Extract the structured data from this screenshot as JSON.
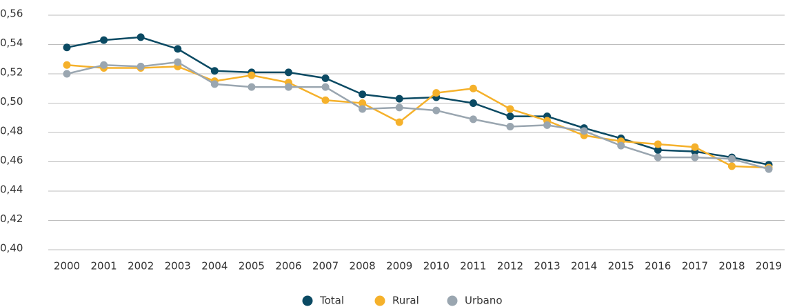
{
  "chart_data": {
    "type": "line",
    "categories": [
      "2000",
      "2001",
      "2002",
      "2003",
      "2004",
      "2005",
      "2006",
      "2007",
      "2008",
      "2009",
      "2010",
      "2011",
      "2012",
      "2013",
      "2014",
      "2015",
      "2016",
      "2017",
      "2018",
      "2019"
    ],
    "series": [
      {
        "name": "Total",
        "color": "#0b4a63",
        "values": [
          0.538,
          0.543,
          0.545,
          0.537,
          0.522,
          0.521,
          0.521,
          0.517,
          0.506,
          0.503,
          0.504,
          0.5,
          0.491,
          0.491,
          0.483,
          0.476,
          0.468,
          0.467,
          0.463,
          0.458
        ]
      },
      {
        "name": "Rural",
        "color": "#f5b12b",
        "values": [
          0.526,
          0.524,
          0.524,
          0.525,
          0.515,
          0.519,
          0.514,
          0.502,
          0.5,
          0.487,
          0.507,
          0.51,
          0.496,
          0.488,
          0.478,
          0.474,
          0.472,
          0.47,
          0.457,
          0.456
        ]
      },
      {
        "name": "Urbano",
        "color": "#9aa6b0",
        "values": [
          0.52,
          0.526,
          0.525,
          0.528,
          0.513,
          0.511,
          0.511,
          0.511,
          0.496,
          0.497,
          0.495,
          0.489,
          0.484,
          0.485,
          0.481,
          0.471,
          0.463,
          0.463,
          0.462,
          0.455
        ]
      }
    ],
    "ylim": [
      0.4,
      0.56
    ],
    "yticks": [
      {
        "value": 0.4,
        "label": "0,40"
      },
      {
        "value": 0.42,
        "label": "0,42"
      },
      {
        "value": 0.44,
        "label": "0,44"
      },
      {
        "value": 0.46,
        "label": "0,46"
      },
      {
        "value": 0.48,
        "label": "0,48"
      },
      {
        "value": 0.5,
        "label": "0,50"
      },
      {
        "value": 0.52,
        "label": "0,52"
      },
      {
        "value": 0.54,
        "label": "0,54"
      },
      {
        "value": 0.56,
        "label": "0,56"
      }
    ],
    "grid": true,
    "legend": "bottom"
  }
}
